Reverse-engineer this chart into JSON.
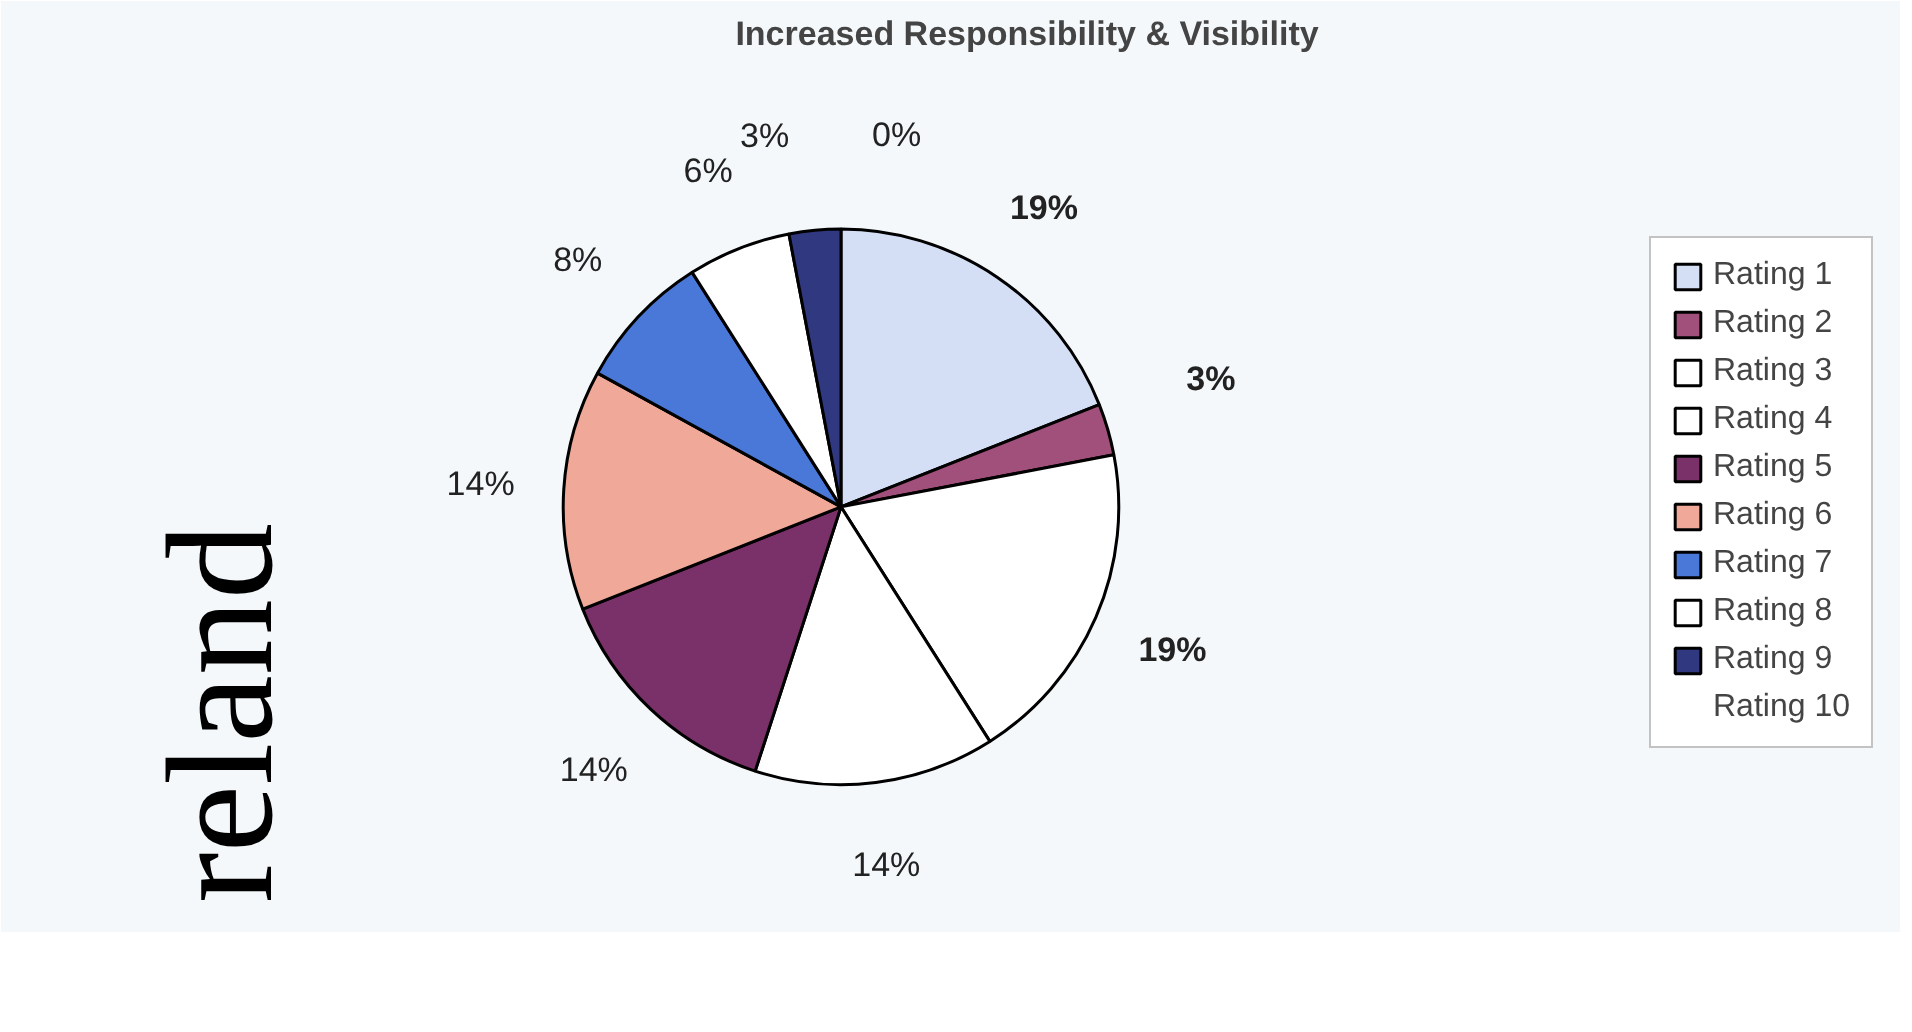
{
  "chart_data": {
    "type": "pie",
    "title": "Increased Responsibility & Visibility",
    "categories": [
      "Rating 1",
      "Rating 2",
      "Rating 3",
      "Rating 4",
      "Rating 5",
      "Rating 6",
      "Rating 7",
      "Rating 8",
      "Rating 9",
      "Rating 10"
    ],
    "values": [
      19,
      3,
      19,
      14,
      14,
      14,
      8,
      6,
      3,
      0
    ],
    "value_labels": [
      "19%",
      "3%",
      "19%",
      "14%",
      "14%",
      "14%",
      "8%",
      "6%",
      "3%",
      "0%"
    ],
    "colors": [
      "#d4def4",
      "#a0507a",
      "#ffffff",
      "#ffffff",
      "#7a3068",
      "#f0a898",
      "#4a78d8",
      "#ffffff",
      "#303880",
      "#9c9cd0"
    ],
    "legend": "right",
    "annotations": [
      "reland"
    ]
  }
}
